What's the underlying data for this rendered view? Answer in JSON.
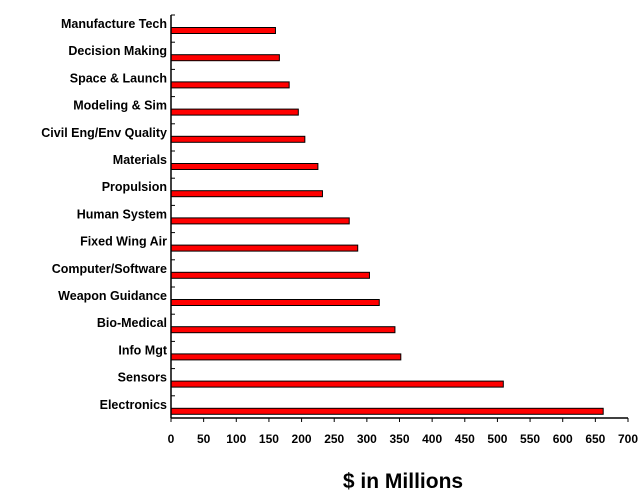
{
  "chart_data": {
    "type": "bar",
    "orientation": "horizontal",
    "categories": [
      "Manufacture Tech",
      "Decision Making",
      "Space & Launch",
      "Modeling & Sim",
      "Civil Eng/Env Quality",
      "Materials",
      "Propulsion",
      "Human System",
      "Fixed Wing Air",
      "Computer/Software",
      "Weapon Guidance",
      "Bio-Medical",
      "Info Mgt",
      "Sensors",
      "Electronics"
    ],
    "values": [
      160,
      166,
      181,
      195,
      205,
      225,
      232,
      273,
      286,
      304,
      319,
      343,
      352,
      509,
      662
    ],
    "xlabel": "$ in Millions",
    "ylabel": "",
    "title": "",
    "xlim": [
      0,
      700
    ],
    "xticks": [
      "0",
      "50",
      "100",
      "150",
      "200",
      "250",
      "300",
      "350",
      "400",
      "450",
      "500",
      "550",
      "600",
      "650",
      "700"
    ],
    "grid": false,
    "legend": "none",
    "bar_color": "#ff0000"
  }
}
